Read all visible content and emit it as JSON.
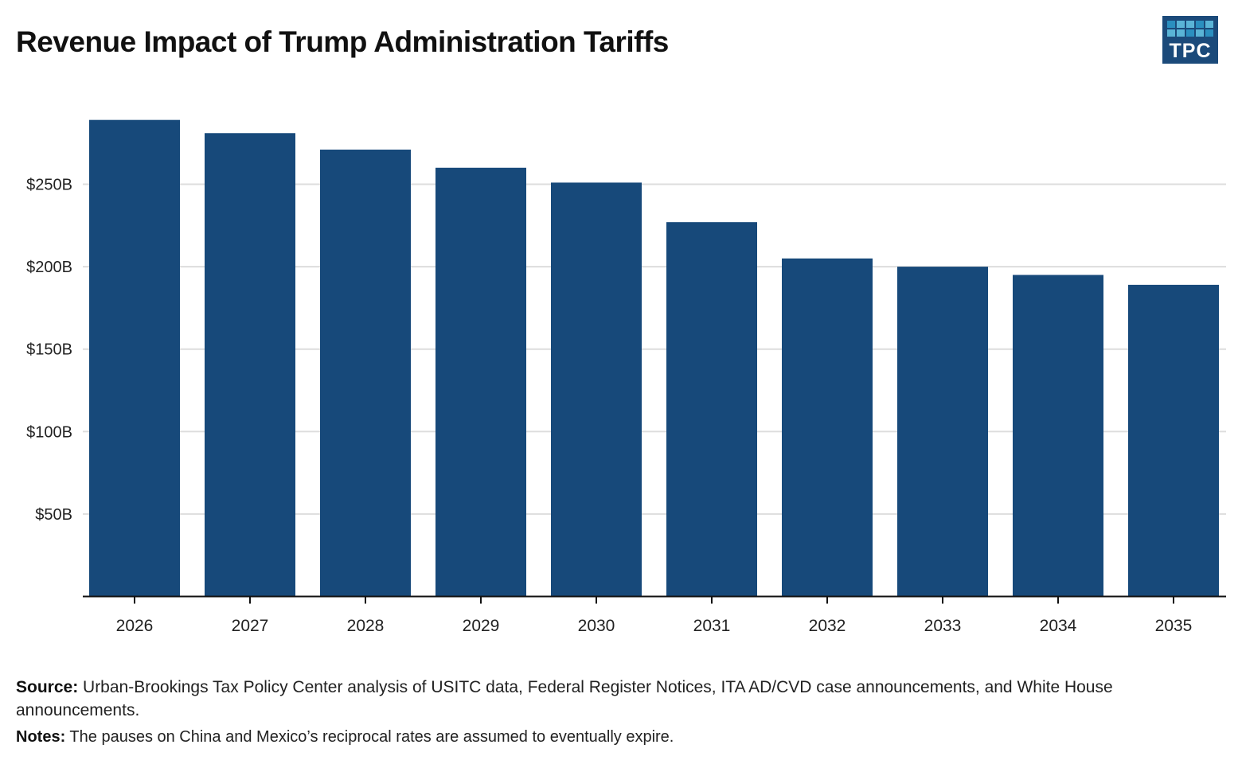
{
  "header": {
    "title": "Revenue Impact of Trump Administration Tariffs",
    "logo_text": "TPC"
  },
  "colors": {
    "bar": "#17497a",
    "gridline": "#dddddd",
    "axis": "#111111",
    "logo_bg": "#1b4a7a"
  },
  "chart_data": {
    "type": "bar",
    "title": "Revenue Impact of Trump Administration Tariffs",
    "xlabel": "",
    "ylabel": "",
    "categories": [
      "2026",
      "2027",
      "2028",
      "2029",
      "2030",
      "2031",
      "2032",
      "2033",
      "2034",
      "2035"
    ],
    "values": [
      289,
      281,
      271,
      260,
      251,
      227,
      205,
      200,
      195,
      189
    ],
    "unit": "billions of dollars",
    "ylim": [
      0,
      300
    ],
    "yticks": [
      50,
      100,
      150,
      200,
      250
    ],
    "ytick_labels": [
      "$50B",
      "$100B",
      "$150B",
      "$200B",
      "$250B"
    ],
    "grid": true,
    "legend": "none"
  },
  "footer": {
    "source_label": "Source:",
    "source_text": " Urban-Brookings Tax Policy Center analysis of USITC data, Federal Register Notices, ITA AD/CVD case announcements, and White House announcements.",
    "notes_label": "Notes:",
    "notes_text": " The pauses on China and Mexico’s reciprocal rates are assumed to eventually expire."
  }
}
